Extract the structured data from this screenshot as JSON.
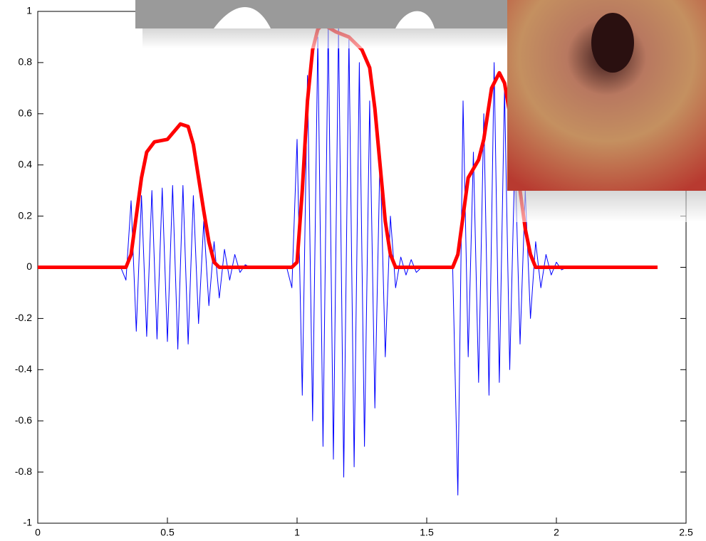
{
  "chart_data": {
    "type": "line",
    "xlim": [
      0,
      2.5
    ],
    "xticks": [
      0,
      0.5,
      1,
      1.5,
      2,
      2.5
    ],
    "ylim": [
      -1,
      1
    ],
    "yticks": [
      -1,
      -0.8,
      -0.6,
      -0.4,
      -0.2,
      0,
      0.2,
      0.4,
      0.6,
      0.8,
      1
    ],
    "series": [
      {
        "color": "#0000ff",
        "x": [
          0,
          0.02,
          0.04,
          0.06,
          0.08,
          0.1,
          0.12,
          0.14,
          0.16,
          0.18,
          0.2,
          0.22,
          0.24,
          0.26,
          0.28,
          0.3,
          0.32,
          0.34,
          0.36,
          0.38,
          0.4,
          0.42,
          0.44,
          0.46,
          0.48,
          0.5,
          0.52,
          0.54,
          0.56,
          0.58,
          0.6,
          0.62,
          0.64,
          0.66,
          0.68,
          0.7,
          0.72,
          0.74,
          0.76,
          0.78,
          0.8,
          0.82,
          0.84,
          0.86,
          0.88,
          0.9,
          0.92,
          0.94,
          0.96,
          0.98,
          1,
          1.02,
          1.04,
          1.06,
          1.08,
          1.1,
          1.12,
          1.14,
          1.16,
          1.18,
          1.2,
          1.22,
          1.24,
          1.26,
          1.28,
          1.3,
          1.32,
          1.34,
          1.36,
          1.38,
          1.4,
          1.42,
          1.44,
          1.46,
          1.48,
          1.5,
          1.52,
          1.54,
          1.56,
          1.58,
          1.6,
          1.62,
          1.64,
          1.66,
          1.68,
          1.7,
          1.72,
          1.74,
          1.76,
          1.78,
          1.8,
          1.82,
          1.84,
          1.86,
          1.88,
          1.9,
          1.92,
          1.94,
          1.96,
          1.98,
          2,
          2.02,
          2.04,
          2.06,
          2.08,
          2.1,
          2.12,
          2.14,
          2.16,
          2.18,
          2.2,
          2.22,
          2.24,
          2.26,
          2.28,
          2.3,
          2.32,
          2.34,
          2.36,
          2.38
        ],
        "values": [
          0,
          0,
          0,
          0,
          0,
          0,
          0,
          0,
          0,
          0,
          0,
          0,
          0,
          0,
          0,
          0,
          0,
          -0.05,
          0.26,
          -0.25,
          0.28,
          -0.27,
          0.3,
          -0.28,
          0.31,
          -0.29,
          0.32,
          -0.32,
          0.32,
          -0.3,
          0.28,
          -0.22,
          0.18,
          -0.15,
          0.1,
          -0.12,
          0.07,
          -0.05,
          0.05,
          -0.02,
          0.01,
          0,
          0,
          0,
          0,
          0,
          0,
          0,
          0,
          -0.08,
          0.5,
          -0.5,
          0.75,
          -0.6,
          0.9,
          -0.7,
          0.95,
          -0.75,
          0.95,
          -0.82,
          0.9,
          -0.78,
          0.8,
          -0.7,
          0.65,
          -0.55,
          0.45,
          -0.35,
          0.2,
          -0.08,
          0.04,
          -0.03,
          0.03,
          -0.02,
          0,
          0,
          0,
          0,
          0,
          0,
          0,
          -0.89,
          0.65,
          -0.35,
          0.45,
          -0.45,
          0.6,
          -0.5,
          0.8,
          -0.45,
          0.7,
          -0.4,
          0.45,
          -0.3,
          0.3,
          -0.2,
          0.1,
          -0.08,
          0.05,
          -0.03,
          0.02,
          -0.01,
          0,
          0,
          0,
          0,
          0,
          0,
          0,
          0,
          0,
          0,
          0,
          0,
          0,
          0,
          0,
          0,
          0,
          0
        ]
      },
      {
        "color": "#ff0000",
        "x": [
          0,
          0.34,
          0.36,
          0.38,
          0.4,
          0.42,
          0.45,
          0.5,
          0.55,
          0.58,
          0.6,
          0.62,
          0.64,
          0.66,
          0.68,
          0.7,
          0.98,
          1,
          1.02,
          1.04,
          1.06,
          1.08,
          1.1,
          1.15,
          1.2,
          1.25,
          1.28,
          1.3,
          1.32,
          1.34,
          1.36,
          1.38,
          1.6,
          1.62,
          1.64,
          1.66,
          1.7,
          1.72,
          1.75,
          1.78,
          1.8,
          1.82,
          1.84,
          1.86,
          1.88,
          1.9,
          1.92,
          2.39
        ],
        "values": [
          0,
          0,
          0.05,
          0.2,
          0.35,
          0.45,
          0.49,
          0.5,
          0.56,
          0.55,
          0.48,
          0.35,
          0.22,
          0.1,
          0.02,
          0,
          0,
          0.02,
          0.3,
          0.65,
          0.85,
          0.93,
          0.95,
          0.92,
          0.9,
          0.85,
          0.78,
          0.62,
          0.4,
          0.18,
          0.05,
          0,
          0,
          0.05,
          0.2,
          0.35,
          0.42,
          0.5,
          0.7,
          0.76,
          0.72,
          0.6,
          0.45,
          0.3,
          0.15,
          0.05,
          0,
          0
        ]
      }
    ]
  }
}
